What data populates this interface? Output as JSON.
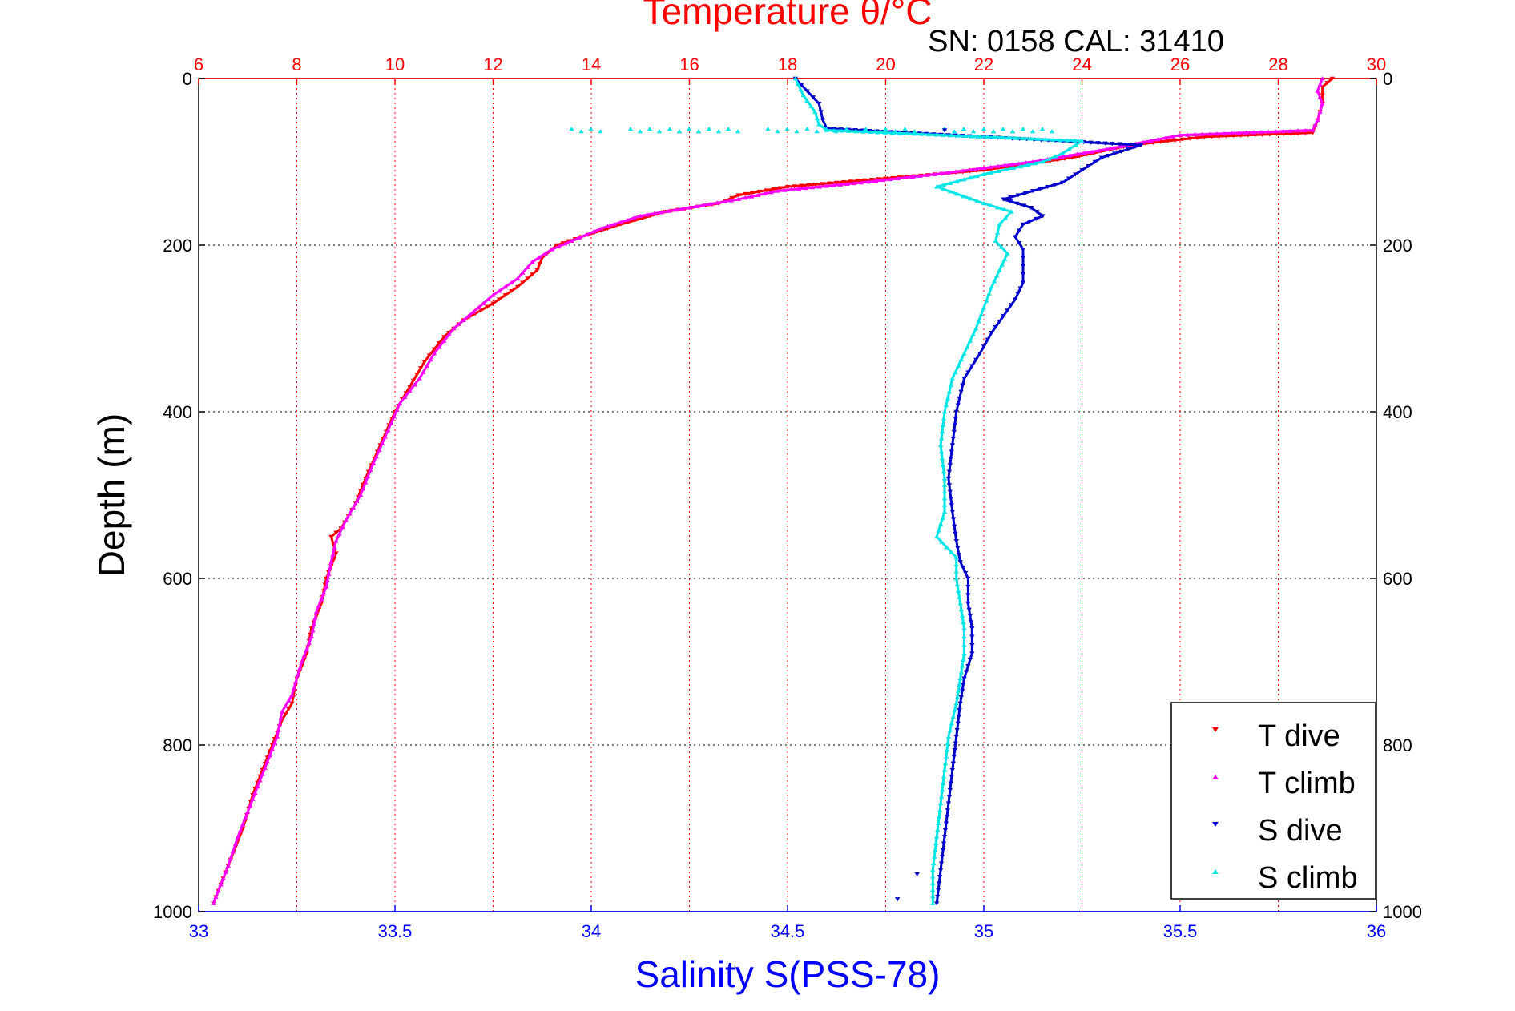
{
  "chart_data": {
    "type": "scatter",
    "title": "Temperature θ/°C",
    "subtitle": "SN: 0158  CAL: 31410",
    "ylabel": "Depth (m)",
    "xlabel": "Salinity S(PSS-78)",
    "x_top_label": "Temperature θ/°C",
    "y_ticks": [
      0,
      200,
      400,
      600,
      800,
      1000
    ],
    "y_range": [
      0,
      1000
    ],
    "y_reversed": true,
    "x_top_ticks": [
      6,
      8,
      10,
      12,
      14,
      16,
      18,
      20,
      22,
      24,
      26,
      28,
      30
    ],
    "x_top_range": [
      6,
      30
    ],
    "x_bottom_ticks": [
      "33",
      "33.5",
      "34",
      "34.5",
      "35",
      "35.5",
      "36"
    ],
    "x_bottom_range": [
      33,
      36
    ],
    "grid": true,
    "legend_position": "bottom-right",
    "colors": {
      "temperature_axis": "#ff0000",
      "salinity_axis": "#0000ff",
      "t_dive": "#ff0000",
      "t_climb": "#ff00ff",
      "s_dive": "#0000cc",
      "s_climb": "#00e5e5"
    },
    "series": [
      {
        "name": "T dive",
        "axis": "temperature",
        "marker": "triangle-down",
        "points": [
          [
            29.1,
            0
          ],
          [
            28.9,
            10
          ],
          [
            28.9,
            30
          ],
          [
            28.8,
            50
          ],
          [
            28.7,
            65
          ],
          [
            26.5,
            70
          ],
          [
            25.0,
            80
          ],
          [
            23.8,
            95
          ],
          [
            22.0,
            110
          ],
          [
            20.0,
            120
          ],
          [
            18.0,
            130
          ],
          [
            17.0,
            140
          ],
          [
            16.6,
            150
          ],
          [
            15.5,
            160
          ],
          [
            14.6,
            175
          ],
          [
            13.8,
            190
          ],
          [
            13.3,
            200
          ],
          [
            13.0,
            215
          ],
          [
            12.9,
            230
          ],
          [
            12.5,
            250
          ],
          [
            12.0,
            270
          ],
          [
            11.4,
            290
          ],
          [
            11.0,
            310
          ],
          [
            10.6,
            340
          ],
          [
            10.3,
            370
          ],
          [
            10.0,
            400
          ],
          [
            9.7,
            440
          ],
          [
            9.4,
            480
          ],
          [
            9.2,
            510
          ],
          [
            8.9,
            540
          ],
          [
            8.7,
            550
          ],
          [
            8.8,
            570
          ],
          [
            8.6,
            600
          ],
          [
            8.5,
            630
          ],
          [
            8.3,
            660
          ],
          [
            8.2,
            690
          ],
          [
            8.0,
            720
          ],
          [
            7.9,
            750
          ],
          [
            7.7,
            770
          ],
          [
            7.5,
            800
          ],
          [
            7.3,
            830
          ],
          [
            7.1,
            860
          ],
          [
            6.9,
            900
          ],
          [
            6.7,
            930
          ],
          [
            6.5,
            960
          ],
          [
            6.3,
            990
          ]
        ]
      },
      {
        "name": "T climb",
        "axis": "temperature",
        "marker": "triangle-up",
        "points": [
          [
            28.9,
            0
          ],
          [
            28.8,
            15
          ],
          [
            28.9,
            30
          ],
          [
            28.8,
            50
          ],
          [
            28.7,
            62
          ],
          [
            26.0,
            68
          ],
          [
            24.5,
            85
          ],
          [
            23.0,
            100
          ],
          [
            21.0,
            115
          ],
          [
            19.5,
            125
          ],
          [
            17.8,
            135
          ],
          [
            17.0,
            145
          ],
          [
            16.0,
            155
          ],
          [
            15.0,
            165
          ],
          [
            14.2,
            180
          ],
          [
            13.6,
            195
          ],
          [
            13.2,
            205
          ],
          [
            12.8,
            220
          ],
          [
            12.5,
            240
          ],
          [
            12.0,
            260
          ],
          [
            11.6,
            280
          ],
          [
            11.2,
            300
          ],
          [
            10.8,
            330
          ],
          [
            10.5,
            360
          ],
          [
            10.1,
            390
          ],
          [
            9.8,
            430
          ],
          [
            9.5,
            470
          ],
          [
            9.3,
            500
          ],
          [
            9.0,
            530
          ],
          [
            8.8,
            555
          ],
          [
            8.7,
            580
          ],
          [
            8.6,
            610
          ],
          [
            8.4,
            640
          ],
          [
            8.3,
            670
          ],
          [
            8.1,
            700
          ],
          [
            7.9,
            740
          ],
          [
            7.7,
            760
          ],
          [
            7.6,
            790
          ],
          [
            7.4,
            820
          ],
          [
            7.2,
            850
          ],
          [
            7.0,
            880
          ],
          [
            6.8,
            910
          ],
          [
            6.6,
            945
          ],
          [
            6.4,
            975
          ],
          [
            6.3,
            990
          ]
        ]
      },
      {
        "name": "S dive",
        "axis": "salinity",
        "marker": "triangle-down",
        "points": [
          [
            34.52,
            0
          ],
          [
            34.55,
            15
          ],
          [
            34.58,
            30
          ],
          [
            34.59,
            50
          ],
          [
            34.6,
            60
          ],
          [
            35.4,
            80
          ],
          [
            35.3,
            95
          ],
          [
            35.25,
            110
          ],
          [
            35.2,
            125
          ],
          [
            35.05,
            145
          ],
          [
            35.12,
            155
          ],
          [
            35.15,
            165
          ],
          [
            35.1,
            175
          ],
          [
            35.08,
            190
          ],
          [
            35.1,
            205
          ],
          [
            35.1,
            225
          ],
          [
            35.1,
            245
          ],
          [
            35.08,
            265
          ],
          [
            35.05,
            285
          ],
          [
            35.02,
            305
          ],
          [
            34.99,
            330
          ],
          [
            34.95,
            360
          ],
          [
            34.93,
            400
          ],
          [
            34.92,
            440
          ],
          [
            34.91,
            480
          ],
          [
            34.92,
            520
          ],
          [
            34.93,
            555
          ],
          [
            34.94,
            580
          ],
          [
            34.96,
            600
          ],
          [
            34.96,
            630
          ],
          [
            34.97,
            660
          ],
          [
            34.97,
            690
          ],
          [
            34.95,
            720
          ],
          [
            34.94,
            750
          ],
          [
            34.93,
            790
          ],
          [
            34.92,
            830
          ],
          [
            34.91,
            870
          ],
          [
            34.9,
            910
          ],
          [
            34.89,
            950
          ],
          [
            34.88,
            990
          ]
        ]
      },
      {
        "name": "S climb",
        "axis": "salinity",
        "marker": "triangle-up",
        "points": [
          [
            34.52,
            0
          ],
          [
            34.54,
            20
          ],
          [
            34.57,
            40
          ],
          [
            34.58,
            55
          ],
          [
            34.6,
            62
          ],
          [
            35.25,
            75
          ],
          [
            35.2,
            90
          ],
          [
            35.15,
            100
          ],
          [
            35.0,
            115
          ],
          [
            34.88,
            130
          ],
          [
            35.0,
            150
          ],
          [
            35.07,
            160
          ],
          [
            35.04,
            175
          ],
          [
            35.03,
            195
          ],
          [
            35.06,
            210
          ],
          [
            35.04,
            230
          ],
          [
            35.02,
            250
          ],
          [
            35.0,
            275
          ],
          [
            34.98,
            300
          ],
          [
            34.95,
            330
          ],
          [
            34.92,
            360
          ],
          [
            34.9,
            400
          ],
          [
            34.89,
            440
          ],
          [
            34.9,
            480
          ],
          [
            34.9,
            520
          ],
          [
            34.88,
            550
          ],
          [
            34.93,
            575
          ],
          [
            34.93,
            600
          ],
          [
            34.94,
            630
          ],
          [
            34.95,
            660
          ],
          [
            34.95,
            690
          ],
          [
            34.94,
            720
          ],
          [
            34.93,
            750
          ],
          [
            34.91,
            790
          ],
          [
            34.9,
            830
          ],
          [
            34.89,
            870
          ],
          [
            34.88,
            910
          ],
          [
            34.87,
            950
          ],
          [
            34.87,
            990
          ]
        ]
      }
    ],
    "scattered_points": {
      "s_climb_row_at_62m": [
        33.95,
        34.1,
        34.2,
        34.3,
        34.45,
        34.55,
        34.65,
        34.75,
        34.9,
        35.0,
        35.1
      ],
      "s_dive_outliers": [
        [
          34.9,
          62
        ],
        [
          34.83,
          955
        ],
        [
          34.78,
          985
        ]
      ]
    }
  }
}
